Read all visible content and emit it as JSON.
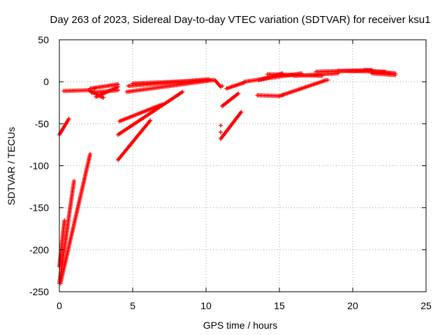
{
  "chart_data": {
    "type": "scatter",
    "title": "Day 263 of 2023, Sidereal Day-to-day VTEC variation (SDTVAR) for receiver ksu1",
    "xlabel": "GPS time / hours",
    "ylabel": "SDTVAR / TECUs",
    "xlim": [
      0,
      25
    ],
    "ylim": [
      -250,
      50
    ],
    "xticks": [
      0,
      5,
      10,
      15,
      20,
      25
    ],
    "yticks": [
      -250,
      -200,
      -150,
      -100,
      -50,
      0,
      50
    ],
    "x_tick_labels": [
      "0",
      "5",
      "10",
      "15",
      "20",
      "25"
    ],
    "y_tick_labels": [
      "-250",
      "-200",
      "-150",
      "-100",
      "-50",
      "0",
      "50"
    ],
    "grid": true,
    "marker": "+",
    "color": "#ff0000",
    "segments": [
      {
        "x0": 0.0,
        "x1": 0.65,
        "y0": -63,
        "y1": -44
      },
      {
        "x0": 0.0,
        "x1": 0.35,
        "y0": -220,
        "y1": -165
      },
      {
        "x0": 0.0,
        "x1": 1.0,
        "y0": -240,
        "y1": -118
      },
      {
        "x0": 0.1,
        "x1": 2.1,
        "y0": -238,
        "y1": -86
      },
      {
        "x0": 0.3,
        "x1": 2.0,
        "y0": -11,
        "y1": -10
      },
      {
        "x0": 2.0,
        "x1": 3.0,
        "y0": -10,
        "y1": -19
      },
      {
        "x0": 2.1,
        "x1": 4.0,
        "y0": -8,
        "y1": -3
      },
      {
        "x0": 2.2,
        "x1": 4.0,
        "y0": -13,
        "y1": -10
      },
      {
        "x0": 2.5,
        "x1": 4.0,
        "y0": -18,
        "y1": -6
      },
      {
        "x0": 4.0,
        "x1": 6.2,
        "y0": -93,
        "y1": -46
      },
      {
        "x0": 4.0,
        "x1": 8.4,
        "y0": -63,
        "y1": -12
      },
      {
        "x0": 4.1,
        "x1": 7.0,
        "y0": -47,
        "y1": -27
      },
      {
        "x0": 4.6,
        "x1": 10.5,
        "y0": -12,
        "y1": 2
      },
      {
        "x0": 4.7,
        "x1": 10.2,
        "y0": -5,
        "y1": 3
      },
      {
        "x0": 5.0,
        "x1": 10.5,
        "y0": -2,
        "y1": 2
      },
      {
        "x0": 10.6,
        "x1": 11.0,
        "y0": 2,
        "y1": -6
      },
      {
        "x0": 11.0,
        "x1": 12.4,
        "y0": -68,
        "y1": -36
      },
      {
        "x0": 11.1,
        "x1": 12.2,
        "y0": -29,
        "y1": -14
      },
      {
        "x0": 11.4,
        "x1": 12.6,
        "y0": -8,
        "y1": -1
      },
      {
        "x0": 12.6,
        "x1": 16.5,
        "y0": 0,
        "y1": 10
      },
      {
        "x0": 13.6,
        "x1": 15.2,
        "y0": 2,
        "y1": 10
      },
      {
        "x0": 14.2,
        "x1": 17.9,
        "y0": 9,
        "y1": 7
      },
      {
        "x0": 13.5,
        "x1": 15.0,
        "y0": -16,
        "y1": -17
      },
      {
        "x0": 15.0,
        "x1": 18.2,
        "y0": -17,
        "y1": 2
      },
      {
        "x0": 16.0,
        "x1": 19.0,
        "y0": 7,
        "y1": 10
      },
      {
        "x0": 17.5,
        "x1": 21.3,
        "y0": 12,
        "y1": 14
      },
      {
        "x0": 19.0,
        "x1": 22.2,
        "y0": 13,
        "y1": 12
      },
      {
        "x0": 20.8,
        "x1": 22.9,
        "y0": 14,
        "y1": 10
      },
      {
        "x0": 21.3,
        "x1": 22.9,
        "y0": 10,
        "y1": 8
      }
    ],
    "isolated_points": [
      {
        "x": 0.1,
        "y": -240
      },
      {
        "x": 2.4,
        "y": -8
      },
      {
        "x": 11.0,
        "y": -60
      },
      {
        "x": 11.0,
        "y": -52
      },
      {
        "x": 11.1,
        "y": -5
      },
      {
        "x": 15.2,
        "y": -16
      },
      {
        "x": 18.3,
        "y": 2
      },
      {
        "x": 21.5,
        "y": 11
      },
      {
        "x": 22.5,
        "y": 10
      }
    ]
  }
}
